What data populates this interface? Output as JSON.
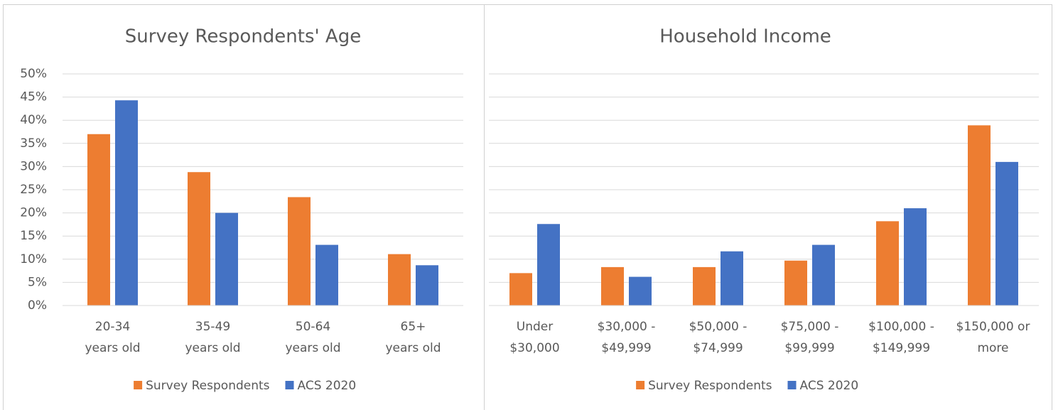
{
  "chart_data": [
    {
      "type": "bar",
      "title": "Survey Respondents' Age",
      "categories": [
        "20-34\nyears old",
        "35-49\nyears old",
        "50-64\nyears old",
        "65+\nyears old"
      ],
      "series": [
        {
          "name": "Survey Respondents",
          "color": "#ed7d31",
          "values": [
            37,
            28.8,
            23.4,
            11.1
          ]
        },
        {
          "name": "ACS 2020",
          "color": "#4472c4",
          "values": [
            44.3,
            20,
            13.1,
            8.7
          ]
        }
      ],
      "ylim": [
        0,
        50
      ],
      "yticks": [
        {
          "value": 0,
          "label": "0%"
        },
        {
          "value": 5,
          "label": "5%"
        },
        {
          "value": 10,
          "label": "10%"
        },
        {
          "value": 15,
          "label": "15%"
        },
        {
          "value": 20,
          "label": "20%"
        },
        {
          "value": 25,
          "label": "25%"
        },
        {
          "value": 30,
          "label": "30%"
        },
        {
          "value": 35,
          "label": "35%"
        },
        {
          "value": 40,
          "label": "40%"
        },
        {
          "value": 45,
          "label": "45%"
        },
        {
          "value": 50,
          "label": "50%"
        }
      ],
      "grid": true,
      "legend": "bottom"
    },
    {
      "type": "bar",
      "title": "Household Income",
      "categories": [
        "Under\n$30,000",
        "$30,000 -\n$49,999",
        "$50,000 -\n$74,999",
        "$75,000 -\n$99,999",
        "$100,000 -\n$149,999",
        "$150,000 or\nmore"
      ],
      "series": [
        {
          "name": "Survey Respondents",
          "color": "#ed7d31",
          "values": [
            7,
            8.3,
            8.3,
            9.7,
            18.2,
            38.9
          ]
        },
        {
          "name": "ACS 2020",
          "color": "#4472c4",
          "values": [
            17.6,
            6.2,
            11.7,
            13.1,
            21,
            31
          ]
        }
      ],
      "ylim": [
        0,
        50
      ],
      "yticks": [
        0,
        5,
        10,
        15,
        20,
        25,
        30,
        35,
        40,
        45,
        50
      ],
      "ytick_labels": false,
      "grid": true,
      "legend": "bottom"
    }
  ]
}
